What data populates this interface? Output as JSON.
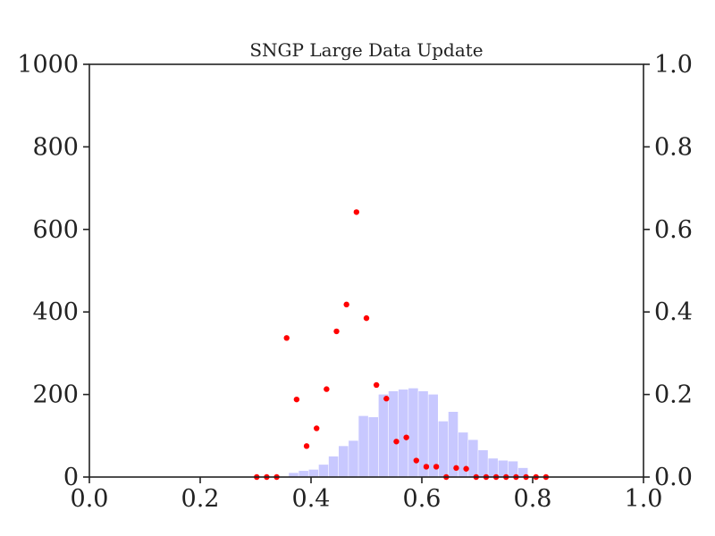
{
  "chart_data": {
    "type": "bar",
    "title": "SNGP Large Data Update",
    "xlabel": "",
    "ylabel": "",
    "xlim": [
      0.0,
      1.0
    ],
    "ylim": [
      0,
      1000
    ],
    "y2lim": [
      0.0,
      1.0
    ],
    "grid": false,
    "x_ticks": [
      "0.0",
      "0.2",
      "0.4",
      "0.6",
      "0.8",
      "1.0"
    ],
    "y_ticks": [
      "0",
      "200",
      "400",
      "600",
      "800",
      "1000"
    ],
    "y2_ticks": [
      "0.0",
      "0.2",
      "0.4",
      "0.6",
      "0.8",
      "1.0"
    ],
    "colors": {
      "histogram": "#c8c8ff",
      "points": "#ff0000"
    },
    "histogram": {
      "bin_edges": [
        0.36,
        0.378,
        0.396,
        0.414,
        0.432,
        0.45,
        0.468,
        0.486,
        0.504,
        0.522,
        0.54,
        0.558,
        0.576,
        0.594,
        0.612,
        0.63,
        0.648,
        0.666,
        0.684,
        0.702,
        0.72,
        0.738,
        0.756,
        0.774,
        0.792
      ],
      "counts": [
        10,
        15,
        18,
        30,
        50,
        75,
        88,
        148,
        145,
        200,
        208,
        212,
        215,
        208,
        200,
        135,
        158,
        108,
        90,
        65,
        45,
        40,
        38,
        22
      ]
    },
    "series": [
      {
        "type": "scatter",
        "axis": "right",
        "x": [
          0.302,
          0.32,
          0.338,
          0.356,
          0.374,
          0.392,
          0.41,
          0.428,
          0.446,
          0.464,
          0.482,
          0.5,
          0.518,
          0.536,
          0.554,
          0.572,
          0.59,
          0.608,
          0.626,
          0.644,
          0.662,
          0.68,
          0.698,
          0.716,
          0.734,
          0.752,
          0.77,
          0.788,
          0.806,
          0.824
        ],
        "y": [
          0.0,
          0.0,
          0.0,
          0.337,
          0.188,
          0.075,
          0.118,
          0.213,
          0.353,
          0.418,
          0.642,
          0.385,
          0.223,
          0.19,
          0.086,
          0.096,
          0.04,
          0.025,
          0.025,
          0.0,
          0.022,
          0.02,
          0.0,
          0.0,
          0.0,
          0.0,
          0.0,
          0.0,
          0.0,
          0.0
        ]
      }
    ]
  }
}
